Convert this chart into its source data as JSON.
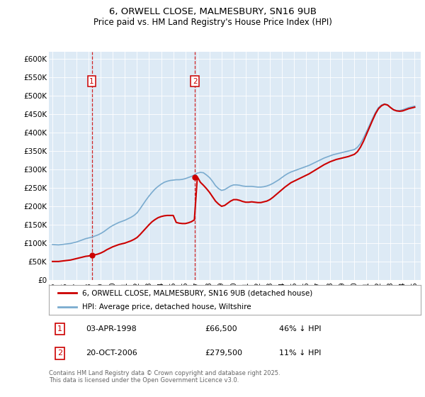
{
  "title": "6, ORWELL CLOSE, MALMESBURY, SN16 9UB",
  "subtitle": "Price paid vs. HM Land Registry's House Price Index (HPI)",
  "ylim": [
    0,
    620000
  ],
  "yticks": [
    0,
    50000,
    100000,
    150000,
    200000,
    250000,
    300000,
    350000,
    400000,
    450000,
    500000,
    550000,
    600000
  ],
  "ytick_labels": [
    "£0",
    "£50K",
    "£100K",
    "£150K",
    "£200K",
    "£250K",
    "£300K",
    "£350K",
    "£400K",
    "£450K",
    "£500K",
    "£550K",
    "£600K"
  ],
  "xlim_start": 1994.7,
  "xlim_end": 2025.5,
  "sale1_date": 1998.25,
  "sale1_price": 66500,
  "sale2_date": 2006.8,
  "sale2_price": 279500,
  "legend_line1": "6, ORWELL CLOSE, MALMESBURY, SN16 9UB (detached house)",
  "legend_line2": "HPI: Average price, detached house, Wiltshire",
  "footer": "Contains HM Land Registry data © Crown copyright and database right 2025.\nThis data is licensed under the Open Government Licence v3.0.",
  "line_red_color": "#cc0000",
  "line_blue_color": "#7aabcf",
  "bg_color": "#ddeaf5",
  "hpi_years": [
    1995.0,
    1995.25,
    1995.5,
    1995.75,
    1996.0,
    1996.25,
    1996.5,
    1996.75,
    1997.0,
    1997.25,
    1997.5,
    1997.75,
    1998.0,
    1998.25,
    1998.5,
    1998.75,
    1999.0,
    1999.25,
    1999.5,
    1999.75,
    2000.0,
    2000.25,
    2000.5,
    2000.75,
    2001.0,
    2001.25,
    2001.5,
    2001.75,
    2002.0,
    2002.25,
    2002.5,
    2002.75,
    2003.0,
    2003.25,
    2003.5,
    2003.75,
    2004.0,
    2004.25,
    2004.5,
    2004.75,
    2005.0,
    2005.25,
    2005.5,
    2005.75,
    2006.0,
    2006.25,
    2006.5,
    2006.75,
    2007.0,
    2007.25,
    2007.5,
    2007.75,
    2008.0,
    2008.25,
    2008.5,
    2008.75,
    2009.0,
    2009.25,
    2009.5,
    2009.75,
    2010.0,
    2010.25,
    2010.5,
    2010.75,
    2011.0,
    2011.25,
    2011.5,
    2011.75,
    2012.0,
    2012.25,
    2012.5,
    2012.75,
    2013.0,
    2013.25,
    2013.5,
    2013.75,
    2014.0,
    2014.25,
    2014.5,
    2014.75,
    2015.0,
    2015.25,
    2015.5,
    2015.75,
    2016.0,
    2016.25,
    2016.5,
    2016.75,
    2017.0,
    2017.25,
    2017.5,
    2017.75,
    2018.0,
    2018.25,
    2018.5,
    2018.75,
    2019.0,
    2019.25,
    2019.5,
    2019.75,
    2020.0,
    2020.25,
    2020.5,
    2020.75,
    2021.0,
    2021.25,
    2021.5,
    2021.75,
    2022.0,
    2022.25,
    2022.5,
    2022.75,
    2023.0,
    2023.25,
    2023.5,
    2023.75,
    2024.0,
    2024.25,
    2024.5,
    2024.75,
    2025.0
  ],
  "hpi_values": [
    96000,
    95500,
    95000,
    96000,
    97000,
    98000,
    99000,
    101000,
    103000,
    106000,
    109000,
    112000,
    114000,
    116000,
    119000,
    122000,
    126000,
    131000,
    137000,
    143000,
    148000,
    152000,
    156000,
    159000,
    162000,
    166000,
    170000,
    175000,
    182000,
    193000,
    205000,
    217000,
    228000,
    238000,
    247000,
    254000,
    260000,
    265000,
    268000,
    270000,
    271000,
    272000,
    272000,
    273000,
    275000,
    278000,
    281000,
    285000,
    290000,
    292000,
    291000,
    285000,
    278000,
    268000,
    256000,
    248000,
    243000,
    245000,
    250000,
    255000,
    258000,
    258000,
    257000,
    255000,
    254000,
    254000,
    254000,
    253000,
    252000,
    252000,
    253000,
    255000,
    258000,
    262000,
    267000,
    272000,
    278000,
    284000,
    289000,
    293000,
    296000,
    299000,
    302000,
    305000,
    308000,
    311000,
    315000,
    319000,
    323000,
    327000,
    331000,
    334000,
    337000,
    340000,
    342000,
    344000,
    346000,
    348000,
    350000,
    352000,
    354000,
    360000,
    370000,
    385000,
    402000,
    420000,
    438000,
    455000,
    468000,
    475000,
    478000,
    475000,
    468000,
    462000,
    460000,
    460000,
    462000,
    465000,
    468000,
    470000,
    472000
  ],
  "red_years": [
    1995.0,
    1995.25,
    1995.5,
    1995.75,
    1996.0,
    1996.25,
    1996.5,
    1996.75,
    1997.0,
    1997.25,
    1997.5,
    1997.75,
    1998.0,
    1998.25,
    1998.5,
    1998.75,
    1999.0,
    1999.25,
    1999.5,
    1999.75,
    2000.0,
    2000.25,
    2000.5,
    2000.75,
    2001.0,
    2001.25,
    2001.5,
    2001.75,
    2002.0,
    2002.25,
    2002.5,
    2002.75,
    2003.0,
    2003.25,
    2003.5,
    2003.75,
    2004.0,
    2004.25,
    2004.5,
    2004.75,
    2005.0,
    2005.25,
    2005.5,
    2005.75,
    2006.0,
    2006.25,
    2006.5,
    2006.75,
    2007.0,
    2007.25,
    2007.5,
    2007.75,
    2008.0,
    2008.25,
    2008.5,
    2008.75,
    2009.0,
    2009.25,
    2009.5,
    2009.75,
    2010.0,
    2010.25,
    2010.5,
    2010.75,
    2011.0,
    2011.25,
    2011.5,
    2011.75,
    2012.0,
    2012.25,
    2012.5,
    2012.75,
    2013.0,
    2013.25,
    2013.5,
    2013.75,
    2014.0,
    2014.25,
    2014.5,
    2014.75,
    2015.0,
    2015.25,
    2015.5,
    2015.75,
    2016.0,
    2016.25,
    2016.5,
    2016.75,
    2017.0,
    2017.25,
    2017.5,
    2017.75,
    2018.0,
    2018.25,
    2018.5,
    2018.75,
    2019.0,
    2019.25,
    2019.5,
    2019.75,
    2020.0,
    2020.25,
    2020.5,
    2020.75,
    2021.0,
    2021.25,
    2021.5,
    2021.75,
    2022.0,
    2022.25,
    2022.5,
    2022.75,
    2023.0,
    2023.25,
    2023.5,
    2023.75,
    2024.0,
    2024.25,
    2024.5,
    2024.75,
    2025.0
  ],
  "red_values": [
    50000,
    50000,
    50000,
    51000,
    52000,
    53000,
    54000,
    56000,
    58000,
    60000,
    62000,
    64000,
    65000,
    66500,
    68000,
    70000,
    73000,
    77000,
    82000,
    86000,
    90000,
    93000,
    96000,
    98000,
    100000,
    103000,
    106000,
    110000,
    115000,
    123000,
    132000,
    141000,
    150000,
    158000,
    164000,
    169000,
    172000,
    174000,
    175000,
    175000,
    175000,
    156000,
    154000,
    153000,
    153000,
    155000,
    158000,
    163000,
    279500,
    265000,
    257000,
    248000,
    238000,
    226000,
    214000,
    206000,
    200000,
    202000,
    208000,
    214000,
    218000,
    218000,
    216000,
    213000,
    211000,
    211000,
    212000,
    211000,
    210000,
    210000,
    212000,
    214000,
    218000,
    224000,
    231000,
    238000,
    245000,
    252000,
    258000,
    264000,
    268000,
    272000,
    276000,
    280000,
    284000,
    288000,
    293000,
    298000,
    303000,
    308000,
    313000,
    317000,
    321000,
    324000,
    327000,
    329000,
    331000,
    333000,
    335000,
    338000,
    341000,
    348000,
    360000,
    376000,
    395000,
    414000,
    433000,
    451000,
    465000,
    473000,
    477000,
    475000,
    468000,
    462000,
    459000,
    458000,
    459000,
    462000,
    465000,
    467000,
    469000
  ]
}
